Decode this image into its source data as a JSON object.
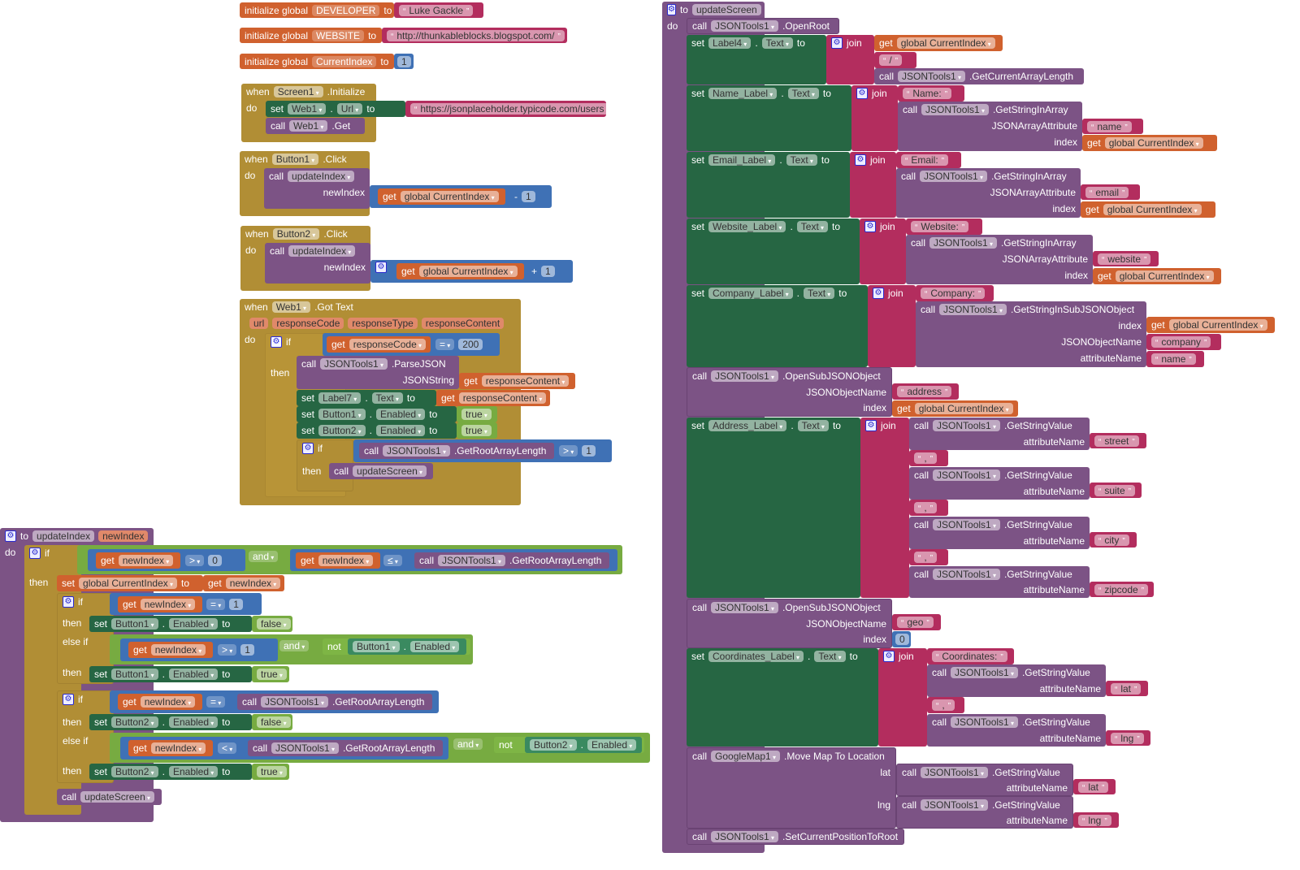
{
  "k": {
    "init": "initialize global",
    "to": "to",
    "when": "when",
    "do": "do",
    "set": "set",
    "call": "call",
    "get": "get",
    "if": "if",
    "then": "then",
    "elseif": "else if",
    "and": "and",
    "not": "not",
    "join": "join",
    "dot": ".",
    "minus": "-",
    "plus": "+",
    "index": "index",
    "true": "true",
    "false": "false",
    "gt": ">",
    "eq": "=",
    "le": "≤",
    "lt": "<",
    "zero": "0",
    "one": "1"
  },
  "n": {
    "jt": "JSONTools1",
    "gci": "global CurrentIndex",
    "text": "Text",
    "enabled": "Enabled",
    "grl": ".GetRootArrayLength",
    "ni": "newIndex",
    "us": "updateScreen",
    "ui": "updateIndex",
    "gsv": ".GetStringValue",
    "an": "attributeName",
    "jaa": "JSONArrayAttribute",
    "gsia": ".GetStringInArray",
    "jon": "JSONObjectName",
    "osjo": ".OpenSubJSONObject",
    "b1": "Button1",
    "b2": "Button2",
    "rc": "responseContent",
    "comma": ",",
    "lat": "lat",
    "lng": "lng",
    "name": "name"
  },
  "globals": [
    {
      "name": "DEVELOPER",
      "value": "Luke Gackle"
    },
    {
      "name": "WEBSITE",
      "value": "http://thunkableblocks.blogspot.com/"
    },
    {
      "name": "CurrentIndex",
      "value": "1"
    }
  ],
  "init": {
    "comp": "Screen1",
    "event": ".Initialize",
    "web": "Web1",
    "prop": "Url",
    "url": "https://jsonplaceholder.typicode.com/users",
    "get": ".Get"
  },
  "click": {
    "event": ".Click"
  },
  "gottext": {
    "comp": "Web1",
    "event": ".Got Text",
    "params": [
      "url",
      "responseCode",
      "responseType",
      "responseContent"
    ],
    "code": "200",
    "parse": ".ParseJSON",
    "jsonstring": "JSONString",
    "label": "Label7"
  },
  "us": {
    "openroot": ".OpenRoot",
    "label4": "Label4",
    "slash": "/",
    "gcal": ".GetCurrentArrayLength",
    "rows": [
      {
        "label": "Name_Label",
        "prefix": "Name:",
        "attr": "name"
      },
      {
        "label": "Email_Label",
        "prefix": "Email:",
        "attr": "email"
      },
      {
        "label": "Website_Label",
        "prefix": "Website:",
        "attr": "website"
      }
    ],
    "company": {
      "label": "Company_Label",
      "prefix": "Company:",
      "method": ".GetStringInSubJSONObject",
      "obj": "company",
      "attr": "name"
    },
    "address": {
      "obj": "address",
      "label": "Address_Label",
      "attrs": [
        "street",
        "suite",
        "city",
        "zipcode"
      ]
    },
    "geo": {
      "obj": "geo",
      "label": "Coordinates_Label",
      "prefix": "Coordinates:"
    },
    "map": {
      "comp": "GoogleMap1",
      "method": ".Move Map To Location"
    },
    "reset": ".SetCurrentPositionToRoot"
  }
}
